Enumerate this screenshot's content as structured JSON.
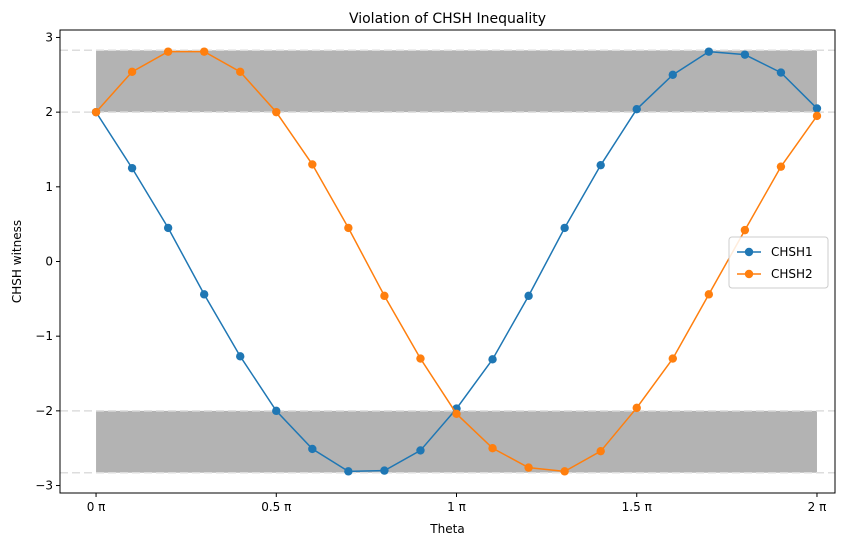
{
  "chart_data": {
    "type": "line",
    "title": "Violation of CHSH Inequality",
    "xlabel": "Theta",
    "ylabel": "CHSH witness",
    "xlim": [
      -0.1,
      2.05
    ],
    "ylim": [
      -3.1,
      3.1
    ],
    "x_unit": "π",
    "x": [
      0,
      0.1,
      0.2,
      0.3,
      0.4,
      0.5,
      0.6,
      0.7,
      0.8,
      0.9,
      1.0,
      1.1,
      1.2,
      1.3,
      1.4,
      1.5,
      1.6,
      1.7,
      1.8,
      1.9,
      2.0
    ],
    "x_ticks": [
      0,
      0.5,
      1,
      1.5,
      2
    ],
    "x_tick_labels": [
      "0 π",
      "0.5 π",
      "1 π",
      "1.5 π",
      "2 π"
    ],
    "y_ticks": [
      -3,
      -2,
      -1,
      0,
      1,
      2,
      3
    ],
    "y_tick_labels": [
      "−3",
      "−2",
      "−1",
      "0",
      "1",
      "2",
      "3"
    ],
    "series": [
      {
        "name": "CHSH1",
        "color": "#1f77b4",
        "values": [
          2.0,
          1.25,
          0.45,
          -0.44,
          -1.27,
          -2.0,
          -2.51,
          -2.81,
          -2.8,
          -2.53,
          -1.97,
          -1.31,
          -0.46,
          0.45,
          1.29,
          2.04,
          2.5,
          2.81,
          2.77,
          2.53,
          2.05
        ]
      },
      {
        "name": "CHSH2",
        "color": "#ff7f0e",
        "values": [
          2.0,
          2.54,
          2.81,
          2.81,
          2.54,
          2.0,
          1.3,
          0.45,
          -0.46,
          -1.3,
          -2.04,
          -2.5,
          -2.76,
          -2.81,
          -2.54,
          -1.96,
          -1.3,
          -0.44,
          0.42,
          1.27,
          1.95
        ]
      }
    ],
    "bands": [
      {
        "from": 2.0,
        "to": 2.828,
        "x_from": 0,
        "x_to": 2,
        "color": "#b3b3b3"
      },
      {
        "from": -2.828,
        "to": -2.0,
        "x_from": 0,
        "x_to": 2,
        "color": "#b3b3b3"
      }
    ],
    "reference_lines": [
      2.828,
      2.0,
      -2.0,
      -2.828
    ],
    "reference_line_color": "#dddddd",
    "legend_position": "center-right",
    "grid": false
  }
}
